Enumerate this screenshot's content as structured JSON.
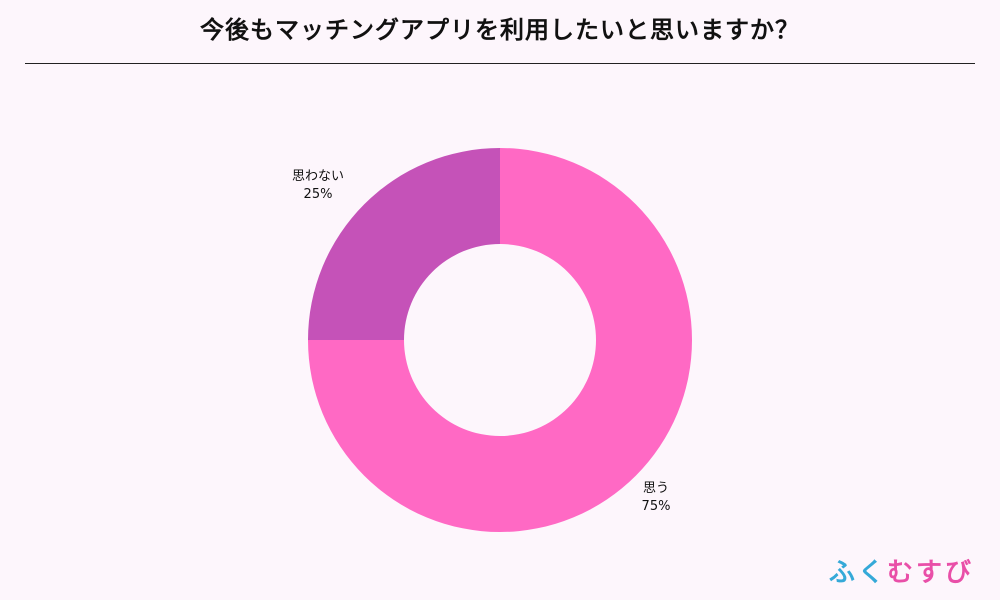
{
  "title": "今後もマッチングアプリを利用したいと思いますか？",
  "brand": {
    "characters": [
      {
        "char": "ふ",
        "color": "#35a9d8"
      },
      {
        "char": "く",
        "color": "#35a9d8"
      },
      {
        "char": "む",
        "color": "#e94fa8"
      },
      {
        "char": "す",
        "color": "#e94fa8"
      },
      {
        "char": "び",
        "color": "#e94fa8"
      }
    ]
  },
  "chart_data": {
    "type": "pie",
    "title": "今後もマッチングアプリを利用したいと思いますか？",
    "donut": true,
    "start": "top",
    "direction": "clockwise",
    "slices": [
      {
        "label": "思う",
        "value": 75,
        "value_label": "75%",
        "color": "#ff69c4"
      },
      {
        "label": "思わない",
        "value": 25,
        "value_label": "25%",
        "color": "#c552b8"
      }
    ]
  }
}
